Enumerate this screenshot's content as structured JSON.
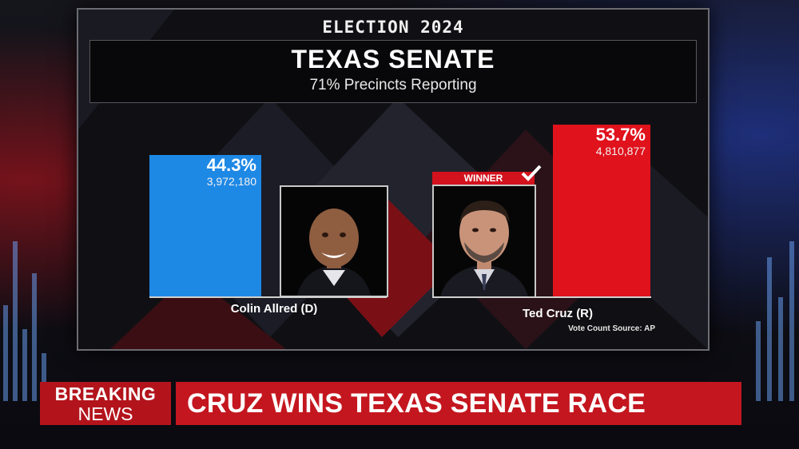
{
  "broadcast": {
    "election_label": "ELECTION 2024",
    "race_title": "TEXAS SENATE",
    "reporting": "71% Precincts Reporting",
    "source": "Vote Count Source: AP",
    "winner_label": "WINNER"
  },
  "candidates": [
    {
      "name": "Colin Allred (D)",
      "pct_label": "44.3%",
      "votes_label": "3,972,180",
      "color": "#1e88e5"
    },
    {
      "name": "Ted Cruz (R)",
      "pct_label": "53.7%",
      "votes_label": "4,810,877",
      "color": "#e0121c",
      "winner": true
    }
  ],
  "chart_data": {
    "type": "bar",
    "categories": [
      "Colin Allred (D)",
      "Ted Cruz (R)"
    ],
    "values": [
      44.3,
      53.7
    ],
    "votes": [
      3972180,
      4810877
    ],
    "title": "TEXAS SENATE",
    "subtitle": "71% Precincts Reporting",
    "colors": [
      "#1e88e5",
      "#e0121c"
    ]
  },
  "ticker": {
    "breaking_line1": "BREAKING",
    "breaking_line2": "NEWS",
    "headline": "CRUZ WINS TEXAS SENATE RACE"
  }
}
